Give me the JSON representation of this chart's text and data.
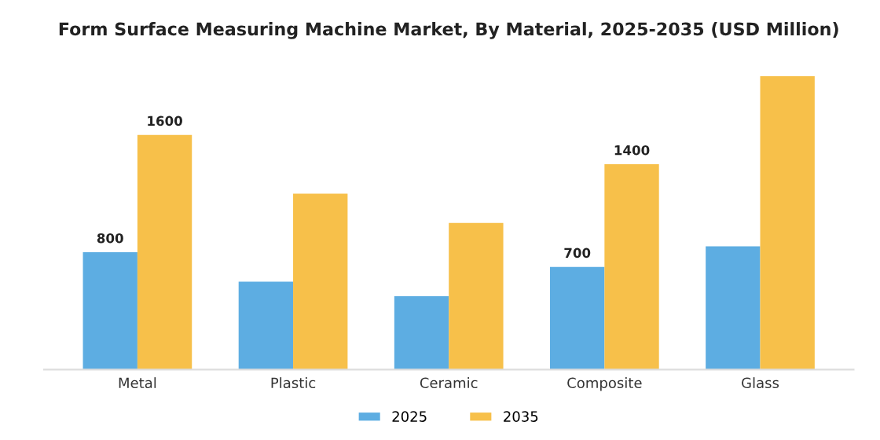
{
  "chart_data": {
    "type": "bar",
    "title": "Form Surface Measuring Machine Market, By Material, 2025-2035 (USD Million)",
    "categories": [
      "Metal",
      "Plastic",
      "Ceramic",
      "Composite",
      "Glass"
    ],
    "series": [
      {
        "name": "2025",
        "color": "#5dade2",
        "values": [
          800,
          600,
          500,
          700,
          840
        ],
        "value_labels": [
          "800",
          null,
          null,
          "700",
          null
        ]
      },
      {
        "name": "2035",
        "color": "#f7c04a",
        "values": [
          1600,
          1200,
          1000,
          1400,
          2000
        ],
        "value_labels": [
          "1600",
          null,
          null,
          "1400",
          null
        ]
      }
    ],
    "tick_labels": "x",
    "grid": false,
    "legend": "bottom"
  }
}
